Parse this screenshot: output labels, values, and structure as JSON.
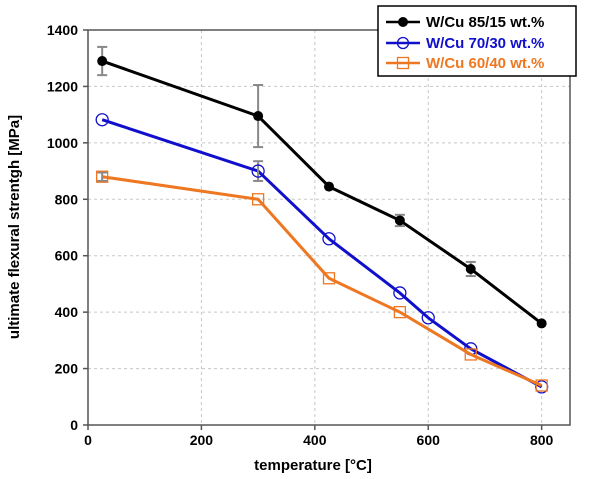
{
  "chart_data": {
    "type": "line",
    "xlabel": "temperature [°C]",
    "ylabel": "ultimate flexural strentgh [MPa]",
    "xlim": [
      0,
      850
    ],
    "ylim": [
      0,
      1400
    ],
    "xticks": [
      0,
      200,
      400,
      600,
      800
    ],
    "yticks": [
      0,
      200,
      400,
      600,
      800,
      1000,
      1200,
      1400
    ],
    "grid": true,
    "legend_position": "top-right",
    "series": [
      {
        "name": "W/Cu 85/15 wt.%",
        "color": "#000000",
        "marker": "filled-circle",
        "x": [
          25,
          300,
          425,
          550,
          675,
          800
        ],
        "y": [
          1290,
          1095,
          845,
          725,
          553,
          360
        ],
        "err": [
          50,
          110,
          0,
          20,
          25,
          0
        ]
      },
      {
        "name": "W/Cu 70/30 wt.%",
        "color": "#1010cc",
        "marker": "open-circle",
        "x": [
          25,
          300,
          425,
          550,
          600,
          675,
          800
        ],
        "y": [
          1082,
          900,
          660,
          468,
          380,
          270,
          135
        ],
        "err": [
          0,
          35,
          0,
          0,
          0,
          0,
          0
        ]
      },
      {
        "name": "W/Cu 60/40 wt.%",
        "color": "#ee7722",
        "marker": "open-square",
        "x": [
          25,
          300,
          425,
          550,
          675,
          800
        ],
        "y": [
          880,
          800,
          520,
          400,
          250,
          140
        ],
        "err": [
          15,
          0,
          0,
          0,
          0,
          0
        ]
      }
    ]
  }
}
